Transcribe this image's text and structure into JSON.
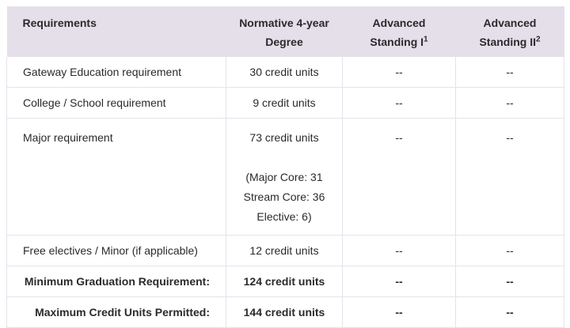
{
  "colors": {
    "header_bg": "#e4dfe9",
    "border": "#e4e3ed",
    "text": "#2a2a2a"
  },
  "table": {
    "header": {
      "col1": "Requirements",
      "col2_line1": "Normative 4-year",
      "col2_line2": "Degree",
      "col3_line1": "Advanced",
      "col3_line2": "Standing I",
      "col3_sup": "1",
      "col4_line1": "Advanced",
      "col4_line2": "Standing II",
      "col4_sup": "2"
    },
    "rows": [
      {
        "requirement": "Gateway Education requirement",
        "normative": "30 credit units",
        "advanced_standing_1": "--",
        "advanced_standing_2": "--"
      },
      {
        "requirement": "College / School requirement",
        "normative": "9 credit units",
        "advanced_standing_1": "--",
        "advanced_standing_2": "--"
      },
      {
        "requirement": "Major requirement",
        "normative": "73 credit units",
        "normative_breakdown": [
          "(Major Core: 31",
          "Stream Core: 36",
          "Elective: 6)"
        ],
        "advanced_standing_1": "--",
        "advanced_standing_2": "--"
      },
      {
        "requirement": "Free electives / Minor (if applicable)",
        "normative": "12 credit units",
        "advanced_standing_1": "--",
        "advanced_standing_2": "--"
      },
      {
        "requirement": "Minimum Graduation Requirement:",
        "normative": "124 credit units",
        "advanced_standing_1": "--",
        "advanced_standing_2": "--",
        "emphasis": true
      },
      {
        "requirement": "Maximum Credit Units Permitted:",
        "normative": "144 credit units",
        "advanced_standing_1": "--",
        "advanced_standing_2": "--",
        "emphasis": true
      }
    ]
  }
}
